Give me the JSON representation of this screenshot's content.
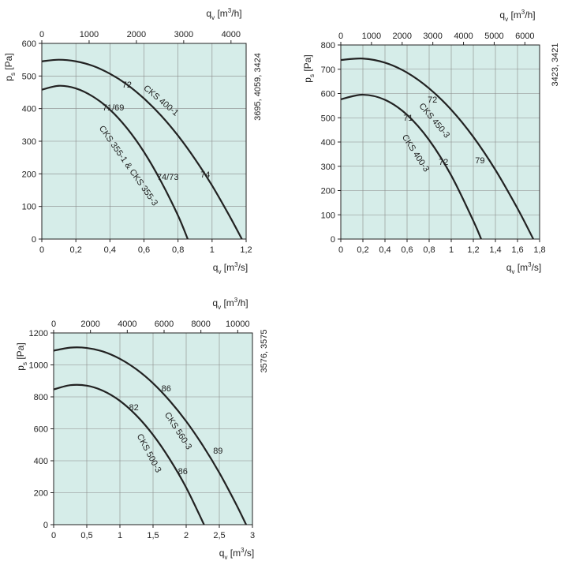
{
  "chart_data": [
    {
      "type": "line",
      "code": "3695, 4059, 3424",
      "x_label": [
        "q",
        "v",
        " [m",
        "3",
        "/s]"
      ],
      "x2_label": [
        "q",
        "v",
        " [m",
        "3",
        "/h]"
      ],
      "y_label": [
        "p",
        "s",
        " [Pa]"
      ],
      "xlim": [
        0,
        1.2
      ],
      "xticks": [
        0,
        {
          "value": 0.2,
          "label": "0,2"
        },
        {
          "value": 0.4,
          "label": "0,4"
        },
        {
          "value": 0.6,
          "label": "0,6"
        },
        {
          "value": 0.8,
          "label": "0,8"
        },
        1,
        {
          "value": 1.2,
          "label": "1,2"
        }
      ],
      "x2lim": [
        0,
        4320
      ],
      "x2ticks": [
        0,
        1000,
        2000,
        3000,
        4000
      ],
      "ylim": [
        0,
        600
      ],
      "yticks": [
        0,
        100,
        200,
        300,
        400,
        500,
        600
      ],
      "grid": true,
      "series": [
        {
          "name": "CKS 400-1",
          "color": "#222222",
          "x": [
            0,
            0.1,
            0.2,
            0.3,
            0.4,
            0.5,
            0.6,
            0.7,
            0.8,
            0.9,
            1.0,
            1.1,
            1.175
          ],
          "values": [
            545,
            550,
            545,
            531,
            507,
            474,
            431,
            379,
            317,
            245,
            164,
            73,
            0
          ]
        },
        {
          "name": "CKS 355-1 & CKS 355-3",
          "color": "#222222",
          "x": [
            0,
            0.1,
            0.2,
            0.3,
            0.4,
            0.5,
            0.6,
            0.7,
            0.8,
            0.857
          ],
          "values": [
            458,
            470,
            462,
            437,
            397,
            340,
            267,
            177,
            72,
            0
          ]
        }
      ],
      "annotations": [
        {
          "text": "72",
          "x": 0.5,
          "y": 472
        },
        {
          "text": "71/69",
          "x": 0.42,
          "y": 402
        },
        {
          "text": "74/73",
          "x": 0.74,
          "y": 189
        },
        {
          "text": "74",
          "x": 0.96,
          "y": 196
        }
      ]
    },
    {
      "type": "line",
      "code": "3423, 3421",
      "x_label": [
        "q",
        "v",
        " [m",
        "3",
        "/s]"
      ],
      "x2_label": [
        "q",
        "v",
        " [m",
        "3",
        "/h]"
      ],
      "y_label": [
        "p",
        "s",
        " [Pa]"
      ],
      "xlim": [
        0,
        1.8
      ],
      "xticks": [
        0,
        {
          "value": 0.2,
          "label": "0,2"
        },
        {
          "value": 0.4,
          "label": "0,4"
        },
        {
          "value": 0.6,
          "label": "0,6"
        },
        {
          "value": 0.8,
          "label": "0,8"
        },
        1,
        {
          "value": 1.2,
          "label": "1,2"
        },
        {
          "value": 1.4,
          "label": "1,4"
        },
        {
          "value": 1.6,
          "label": "1,6"
        },
        {
          "value": 1.8,
          "label": "1,8"
        }
      ],
      "x2lim": [
        0,
        6480
      ],
      "x2ticks": [
        0,
        1000,
        2000,
        3000,
        4000,
        5000,
        6000
      ],
      "ylim": [
        0,
        800
      ],
      "yticks": [
        0,
        100,
        200,
        300,
        400,
        500,
        600,
        700,
        800
      ],
      "grid": true,
      "series": [
        {
          "name": "CKS 450-3",
          "color": "#222222",
          "x": [
            0,
            0.2,
            0.4,
            0.6,
            0.8,
            1.0,
            1.2,
            1.4,
            1.6,
            1.743
          ],
          "values": [
            738,
            744,
            727,
            686,
            621,
            533,
            421,
            285,
            126,
            0
          ]
        },
        {
          "name": "CKS 400-3",
          "color": "#222222",
          "x": [
            0,
            0.2,
            0.4,
            0.6,
            0.8,
            1.0,
            1.2,
            1.271
          ],
          "values": [
            576,
            595,
            574,
            512,
            408,
            262,
            75,
            0
          ]
        }
      ],
      "annotations": [
        {
          "text": "72",
          "x": 0.83,
          "y": 572
        },
        {
          "text": "71",
          "x": 0.61,
          "y": 498
        },
        {
          "text": "72",
          "x": 0.93,
          "y": 315
        },
        {
          "text": "79",
          "x": 1.26,
          "y": 322
        }
      ]
    },
    {
      "type": "line",
      "code": "3576, 3575",
      "x_label": [
        "q",
        "v",
        " [m",
        "3",
        "/s]"
      ],
      "x2_label": [
        "q",
        "v",
        " [m",
        "3",
        "/h]"
      ],
      "y_label": [
        "p",
        "s",
        " [Pa]"
      ],
      "xlim": [
        0,
        3
      ],
      "xticks": [
        0,
        {
          "value": 0.5,
          "label": "0,5"
        },
        1,
        {
          "value": 1.5,
          "label": "1,5"
        },
        2,
        {
          "value": 2.5,
          "label": "2,5"
        },
        3
      ],
      "x2lim": [
        0,
        10800
      ],
      "x2ticks": [
        0,
        2000,
        4000,
        6000,
        8000,
        10000
      ],
      "ylim": [
        0,
        1200
      ],
      "yticks": [
        0,
        200,
        400,
        600,
        800,
        1000,
        1200
      ],
      "grid": true,
      "series": [
        {
          "name": "CKS 560-3",
          "color": "#222222",
          "x": [
            0,
            0.25,
            0.5,
            0.75,
            1.0,
            1.25,
            1.5,
            1.75,
            2.0,
            2.25,
            2.5,
            2.75,
            2.905
          ],
          "values": [
            1089,
            1108,
            1106,
            1083,
            1038,
            972,
            885,
            776,
            647,
            496,
            325,
            131,
            0
          ]
        },
        {
          "name": "CKS 500-3",
          "color": "#222222",
          "x": [
            0,
            0.25,
            0.5,
            0.75,
            1.0,
            1.25,
            1.5,
            1.75,
            2.0,
            2.27
          ],
          "values": [
            846,
            873,
            870,
            837,
            775,
            683,
            562,
            411,
            232,
            0
          ]
        }
      ],
      "annotations": [
        {
          "text": "86",
          "x": 1.7,
          "y": 849
        },
        {
          "text": "82",
          "x": 1.21,
          "y": 731
        },
        {
          "text": "89",
          "x": 2.48,
          "y": 459
        },
        {
          "text": "86",
          "x": 1.95,
          "y": 331
        }
      ]
    }
  ]
}
